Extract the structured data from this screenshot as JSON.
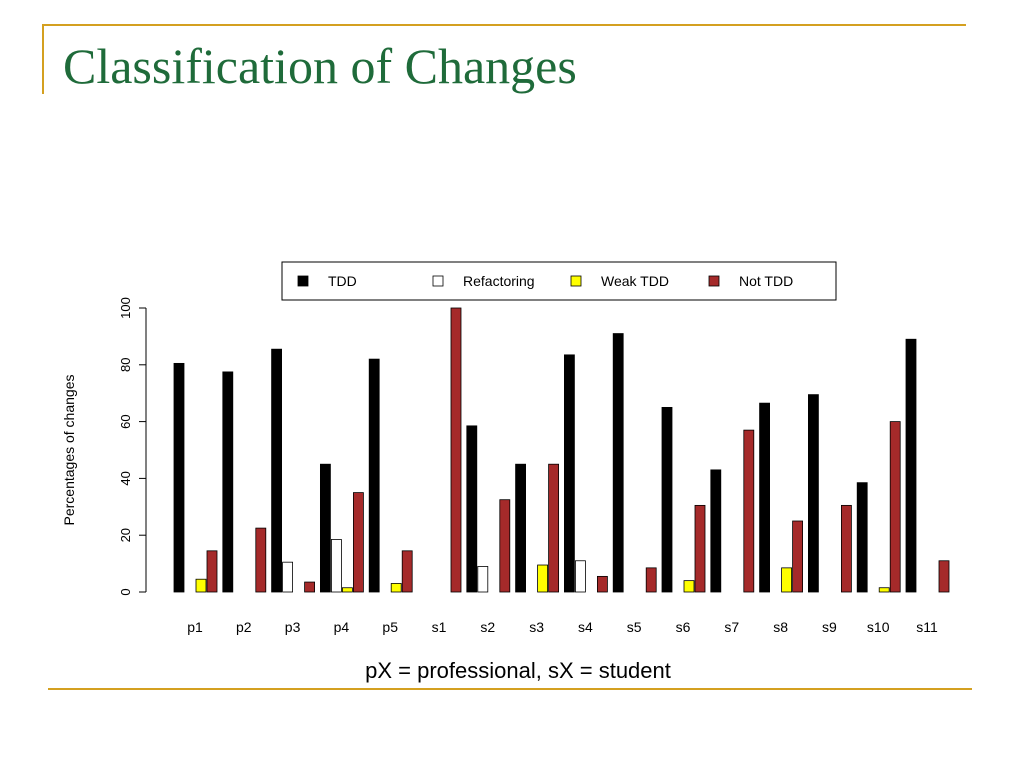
{
  "slide": {
    "title": "Classification of Changes",
    "caption": "pX = professional, sX = student"
  },
  "colors": {
    "rule": "#d4a020",
    "title": "#1f6b3a"
  },
  "chart_data": {
    "type": "bar",
    "ylabel": "Percentages of changes",
    "xlabel": "",
    "ylim": [
      0,
      100
    ],
    "yticks": [
      0,
      20,
      40,
      60,
      80,
      100
    ],
    "categories": [
      "p1",
      "p2",
      "p3",
      "p4",
      "p5",
      "s1",
      "s2",
      "s3",
      "s4",
      "s5",
      "s6",
      "s7",
      "s8",
      "s9",
      "s10",
      "s11"
    ],
    "legend_position": "top",
    "series": [
      {
        "name": "TDD",
        "color": "#000000",
        "values": [
          80.5,
          77.5,
          85.5,
          45,
          82,
          0,
          58.5,
          45,
          83.5,
          91,
          65,
          43,
          66.5,
          69.5,
          38.5,
          89
        ]
      },
      {
        "name": "Refactoring",
        "color": "#ffffff",
        "values": [
          0,
          0,
          10.5,
          18.5,
          0,
          0,
          9,
          0,
          11,
          0,
          0,
          0,
          0,
          0,
          0,
          0
        ]
      },
      {
        "name": "Weak TDD",
        "color": "#ffff00",
        "values": [
          4.5,
          0,
          0,
          1.5,
          3,
          0,
          0,
          9.5,
          0,
          0,
          4,
          0,
          8.5,
          0,
          1.5,
          0
        ]
      },
      {
        "name": "Not TDD",
        "color": "#a52a2a",
        "values": [
          14.5,
          22.5,
          3.5,
          35,
          14.5,
          100,
          32.5,
          45,
          5.5,
          8.5,
          30.5,
          57,
          25,
          30.5,
          60,
          11
        ]
      }
    ]
  }
}
